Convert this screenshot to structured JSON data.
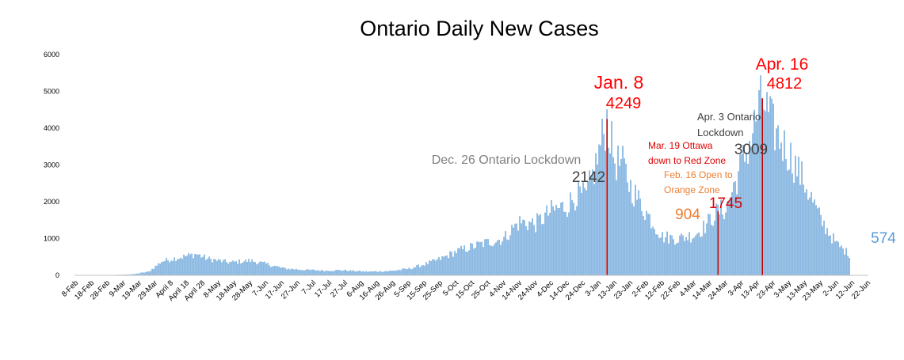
{
  "chart_data": {
    "type": "bar",
    "title": "Ontario Daily New Cases",
    "xlabel": "",
    "ylabel": "",
    "ylim": [
      0,
      6000
    ],
    "yticks": [
      0,
      1000,
      2000,
      3000,
      4000,
      5000,
      6000
    ],
    "grid": false,
    "legend": "none",
    "x_start": "2020-02-08",
    "tick_labels": [
      "8-Feb",
      "18-Feb",
      "28-Feb",
      "9-Mar",
      "19-Mar",
      "29-Mar",
      "April 8",
      "April 18",
      "April 28",
      "8-May",
      "18-May",
      "28-May",
      "7-Jun",
      "17-Jun",
      "27-Jun",
      "7-Jul",
      "17-Jul",
      "27-Jul",
      "6-Aug",
      "16-Aug",
      "26-Aug",
      "5-Sep",
      "15-Sep",
      "25-Sep",
      "5-Oct",
      "15-Oct",
      "25-Oct",
      "4-Nov",
      "14-Nov",
      "24-Nov",
      "4-Dec",
      "14-Dec",
      "24-Dec",
      "3-Jan",
      "13-Jan",
      "23-Jan",
      "2-Feb",
      "12-Feb",
      "22-Feb",
      "4-Mar",
      "14-Mar",
      "24-Mar",
      "3-Apr",
      "13-Apr",
      "23-Apr",
      "3-May",
      "13-May",
      "23-May",
      "2-Jun",
      "12-Jun",
      "22-Jun"
    ],
    "series_anchors": [
      {
        "date": "2020-02-08",
        "value": 0
      },
      {
        "date": "2020-03-01",
        "value": 5
      },
      {
        "date": "2020-03-15",
        "value": 30
      },
      {
        "date": "2020-03-25",
        "value": 100
      },
      {
        "date": "2020-04-02",
        "value": 380
      },
      {
        "date": "2020-04-10",
        "value": 460
      },
      {
        "date": "2020-04-24",
        "value": 580
      },
      {
        "date": "2020-05-01",
        "value": 450
      },
      {
        "date": "2020-05-15",
        "value": 350
      },
      {
        "date": "2020-05-28",
        "value": 400
      },
      {
        "date": "2020-06-08",
        "value": 300
      },
      {
        "date": "2020-06-18",
        "value": 190
      },
      {
        "date": "2020-07-01",
        "value": 150
      },
      {
        "date": "2020-07-15",
        "value": 130
      },
      {
        "date": "2020-07-25",
        "value": 140
      },
      {
        "date": "2020-08-10",
        "value": 100
      },
      {
        "date": "2020-08-25",
        "value": 120
      },
      {
        "date": "2020-09-05",
        "value": 180
      },
      {
        "date": "2020-09-15",
        "value": 300
      },
      {
        "date": "2020-09-25",
        "value": 450
      },
      {
        "date": "2020-10-05",
        "value": 650
      },
      {
        "date": "2020-10-15",
        "value": 780
      },
      {
        "date": "2020-10-25",
        "value": 900
      },
      {
        "date": "2020-11-04",
        "value": 1000
      },
      {
        "date": "2020-11-10",
        "value": 1300
      },
      {
        "date": "2020-11-14",
        "value": 1450
      },
      {
        "date": "2020-11-24",
        "value": 1400
      },
      {
        "date": "2020-12-04",
        "value": 1750
      },
      {
        "date": "2020-12-14",
        "value": 1900
      },
      {
        "date": "2020-12-20",
        "value": 2200
      },
      {
        "date": "2020-12-26",
        "value": 2142
      },
      {
        "date": "2021-01-01",
        "value": 3000
      },
      {
        "date": "2021-01-08",
        "value": 4249
      },
      {
        "date": "2021-01-13",
        "value": 3100
      },
      {
        "date": "2021-01-18",
        "value": 3000
      },
      {
        "date": "2021-01-23",
        "value": 2400
      },
      {
        "date": "2021-02-02",
        "value": 1700
      },
      {
        "date": "2021-02-12",
        "value": 1050
      },
      {
        "date": "2021-02-22",
        "value": 1000
      },
      {
        "date": "2021-03-04",
        "value": 1100
      },
      {
        "date": "2021-03-10",
        "value": 1300
      },
      {
        "date": "2021-03-19",
        "value": 1745
      },
      {
        "date": "2021-03-24",
        "value": 1800
      },
      {
        "date": "2021-04-03",
        "value": 3009
      },
      {
        "date": "2021-04-08",
        "value": 3600
      },
      {
        "date": "2021-04-16",
        "value": 4812
      },
      {
        "date": "2021-04-23",
        "value": 4000
      },
      {
        "date": "2021-05-03",
        "value": 3300
      },
      {
        "date": "2021-05-13",
        "value": 2500
      },
      {
        "date": "2021-05-23",
        "value": 1500
      },
      {
        "date": "2021-06-02",
        "value": 850
      },
      {
        "date": "2021-06-10",
        "value": 574
      }
    ],
    "highlight_bars": [
      {
        "date": "2021-01-08",
        "value": 4249,
        "color": "#c00000"
      },
      {
        "date": "2021-03-19",
        "value": 1745,
        "color": "#c00000"
      },
      {
        "date": "2021-04-16",
        "value": 4812,
        "color": "#c00000"
      }
    ],
    "annotations": [
      {
        "id": "jan8-date",
        "text": "Jan. 8",
        "color": "#ff0000"
      },
      {
        "id": "jan8-value",
        "text": "4249",
        "color": "#ff0000"
      },
      {
        "id": "apr16-date",
        "text": "Apr. 16",
        "color": "#ff0000"
      },
      {
        "id": "apr16-value",
        "text": "4812",
        "color": "#ff0000"
      },
      {
        "id": "dec26-label",
        "text": "Dec. 26 Ontario Lockdown",
        "color": "#808080"
      },
      {
        "id": "dec26-value",
        "text": "2142",
        "color": "#404040"
      },
      {
        "id": "apr3-label-1",
        "text": "Apr. 3 Ontario",
        "color": "#404040"
      },
      {
        "id": "apr3-label-2",
        "text": "Lockdown",
        "color": "#404040"
      },
      {
        "id": "apr3-value",
        "text": "3009",
        "color": "#404040"
      },
      {
        "id": "mar19-label-1",
        "text": "Mar. 19 Ottawa",
        "color": "#e00000"
      },
      {
        "id": "mar19-label-2",
        "text": "down to Red Zone",
        "color": "#e00000"
      },
      {
        "id": "mar19-value",
        "text": "1745",
        "color": "#e00000"
      },
      {
        "id": "feb16-label-1",
        "text": "Feb. 16 Open to",
        "color": "#ed7d31"
      },
      {
        "id": "feb16-label-2",
        "text": "Orange Zone",
        "color": "#ed7d31"
      },
      {
        "id": "feb16-value",
        "text": "904",
        "color": "#ed7d31"
      },
      {
        "id": "last-value",
        "text": "574",
        "color": "#5b9bd5"
      }
    ],
    "colors": {
      "bar": "#5b9bd5",
      "highlight": "#c00000",
      "axis": "#bfbfbf",
      "text": "#000000"
    }
  }
}
